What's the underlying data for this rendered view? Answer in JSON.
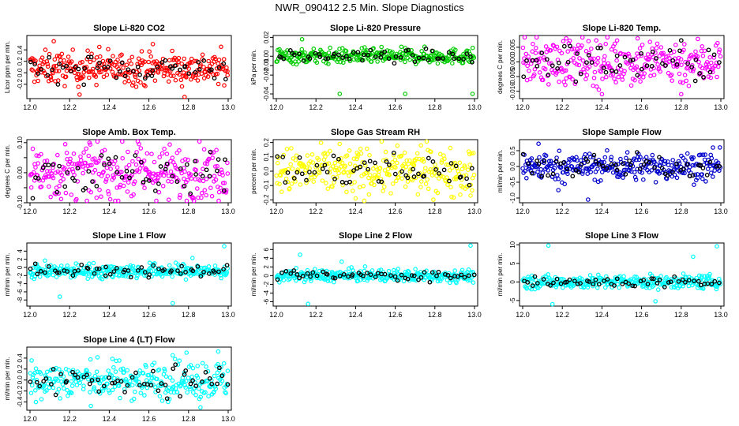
{
  "figure_title": "NWR_090412  2.5 Min. Slope Diagnostics",
  "chart_data": [
    {
      "type": "scatter",
      "title": "Slope Li-820 CO2",
      "ylabel": "Licor ppm per min.",
      "xlim": [
        12.0,
        13.0
      ],
      "ylim": [
        -0.45,
        0.65
      ],
      "yticks": [
        -0.2,
        0.0,
        0.2,
        0.4
      ],
      "yticklabels": [
        "-0.2",
        "0.0",
        "0.2",
        "0.4"
      ],
      "xticks": [
        12.0,
        12.2,
        12.4,
        12.6,
        12.8,
        13.0
      ],
      "xticklabels": [
        "12.0",
        "12.2",
        "12.4",
        "12.6",
        "12.8",
        "13.0"
      ],
      "color": "#ff0000",
      "center": 0.08,
      "spread": 0.14,
      "outliers": [
        [
          12.12,
          0.55
        ],
        [
          12.25,
          -0.38
        ],
        [
          12.35,
          0.45
        ],
        [
          12.62,
          0.5
        ],
        [
          12.78,
          -0.42
        ]
      ]
    },
    {
      "type": "scatter",
      "title": "Slope Li-820 Pressure",
      "ylabel": "kPa per min.",
      "xlim": [
        12.0,
        13.0
      ],
      "ylim": [
        -0.045,
        0.022
      ],
      "yticks": [
        -0.04,
        -0.03,
        -0.02,
        -0.01,
        0.0,
        0.01,
        0.02
      ],
      "yticklabels": [
        "-0.04",
        "",
        "-0.02",
        "-0.01",
        "0.00",
        "",
        "0.02"
      ],
      "xticks": [
        12.0,
        12.2,
        12.4,
        12.6,
        12.8,
        13.0
      ],
      "xticklabels": [
        "12.0",
        "12.2",
        "12.4",
        "12.6",
        "12.8",
        "13.0"
      ],
      "color": "#00cc00",
      "center": 0.0,
      "spread": 0.004,
      "outliers": [
        [
          12.32,
          -0.04
        ],
        [
          12.65,
          -0.04
        ],
        [
          12.99,
          -0.04
        ],
        [
          12.13,
          0.018
        ]
      ]
    },
    {
      "type": "scatter",
      "title": "Slope Li-820 Temp.",
      "ylabel": "degrees C per min.",
      "xlim": [
        12.0,
        13.0
      ],
      "ylim": [
        -0.0125,
        0.009
      ],
      "yticks": [
        -0.01,
        -0.005,
        0.0,
        0.005
      ],
      "yticklabels": [
        "-0.010",
        "-0.005",
        "0.000",
        "0.005"
      ],
      "xticks": [
        12.0,
        12.2,
        12.4,
        12.6,
        12.8,
        13.0
      ],
      "xticklabels": [
        "12.0",
        "12.2",
        "12.4",
        "12.6",
        "12.8",
        "13.0"
      ],
      "color": "#ff00ff",
      "center": 0.0,
      "spread": 0.004,
      "outliers": [
        [
          12.22,
          0.008
        ],
        [
          12.4,
          -0.011
        ],
        [
          12.58,
          0.008
        ],
        [
          12.8,
          -0.011
        ]
      ]
    },
    {
      "type": "scatter",
      "title": "Slope Amb. Box Temp.",
      "ylabel": "degrees C per min.",
      "xlim": [
        12.0,
        13.0
      ],
      "ylim": [
        -0.1,
        0.11
      ],
      "yticks": [
        -0.1,
        -0.05,
        0.0,
        0.05,
        0.1
      ],
      "yticklabels": [
        "-0.10",
        "",
        "0.00",
        "",
        "0.10"
      ],
      "xticks": [
        12.0,
        12.2,
        12.4,
        12.6,
        12.8,
        13.0
      ],
      "xticklabels": [
        "12.0",
        "12.2",
        "12.4",
        "12.6",
        "12.8",
        "13.0"
      ],
      "color": "#ff00ff",
      "center": 0.0,
      "spread": 0.045,
      "outliers": [
        [
          12.3,
          0.1
        ],
        [
          12.55,
          0.095
        ],
        [
          12.7,
          -0.09
        ]
      ]
    },
    {
      "type": "scatter",
      "title": "Slope Gas Stream RH",
      "ylabel": "percent per min.",
      "xlim": [
        12.0,
        13.0
      ],
      "ylim": [
        -0.22,
        0.22
      ],
      "yticks": [
        -0.2,
        -0.1,
        0.0,
        0.1,
        0.2
      ],
      "yticklabels": [
        "-0.2",
        "-0.1",
        "0.0",
        "0.1",
        "0.2"
      ],
      "xticks": [
        12.0,
        12.2,
        12.4,
        12.6,
        12.8,
        13.0
      ],
      "xticklabels": [
        "12.0",
        "12.2",
        "12.4",
        "12.6",
        "12.8",
        "13.0"
      ],
      "color": "#ffff00",
      "center": 0.0,
      "spread": 0.08,
      "outliers": [
        [
          12.32,
          0.19
        ],
        [
          12.4,
          -0.19
        ],
        [
          12.73,
          0.18
        ],
        [
          12.98,
          -0.17
        ]
      ]
    },
    {
      "type": "scatter",
      "title": "Slope Sample Flow",
      "ylabel": "ml/min per min.",
      "xlim": [
        12.0,
        13.0
      ],
      "ylim": [
        -1.15,
        0.85
      ],
      "yticks": [
        -1.0,
        -0.5,
        0.0,
        0.5
      ],
      "yticklabels": [
        "-1.0",
        "-0.5",
        "0.0",
        "0.5"
      ],
      "xticks": [
        12.0,
        12.2,
        12.4,
        12.6,
        12.8,
        13.0
      ],
      "xticklabels": [
        "12.0",
        "12.2",
        "12.4",
        "12.6",
        "12.8",
        "13.0"
      ],
      "color": "#0000cc",
      "center": 0.0,
      "spread": 0.22,
      "outliers": [
        [
          12.08,
          0.72
        ],
        [
          12.33,
          -1.05
        ],
        [
          12.18,
          -0.75
        ],
        [
          12.96,
          0.6
        ]
      ]
    },
    {
      "type": "scatter",
      "title": "Slope Line 1 Flow",
      "ylabel": "ml/min per min.",
      "xlim": [
        12.0,
        13.0
      ],
      "ylim": [
        -9.5,
        6.0
      ],
      "yticks": [
        -8,
        -6,
        -4,
        -2,
        0,
        2,
        4
      ],
      "yticklabels": [
        "-8",
        "-6",
        "-4",
        "-2",
        "0",
        "2",
        "4"
      ],
      "xticks": [
        12.0,
        12.2,
        12.4,
        12.6,
        12.8,
        13.0
      ],
      "xticklabels": [
        "12.0",
        "12.2",
        "12.4",
        "12.6",
        "12.8",
        "13.0"
      ],
      "color": "#00ffff",
      "center": -0.9,
      "spread": 0.9,
      "outliers": [
        [
          12.15,
          -7.2
        ],
        [
          12.72,
          -8.8
        ],
        [
          12.98,
          5.2
        ],
        [
          12.82,
          2.3
        ]
      ]
    },
    {
      "type": "scatter",
      "title": "Slope Line 2 Flow",
      "ylabel": "ml/min per min.",
      "xlim": [
        12.0,
        13.0
      ],
      "ylim": [
        -7.0,
        7.5
      ],
      "yticks": [
        -6,
        -4,
        -2,
        0,
        2,
        4,
        6
      ],
      "yticklabels": [
        "-6",
        "-4",
        "-2",
        "0",
        "2",
        "4",
        "6"
      ],
      "xticks": [
        12.0,
        12.2,
        12.4,
        12.6,
        12.8,
        13.0
      ],
      "xticklabels": [
        "12.0",
        "12.2",
        "12.4",
        "12.6",
        "12.8",
        "13.0"
      ],
      "color": "#00ffff",
      "center": 0.0,
      "spread": 0.7,
      "outliers": [
        [
          12.16,
          -6.5
        ],
        [
          12.12,
          4.8
        ],
        [
          12.98,
          6.9
        ],
        [
          12.33,
          3.2
        ]
      ]
    },
    {
      "type": "scatter",
      "title": "Slope Line 3 Flow",
      "ylabel": "ml/min per min.",
      "xlim": [
        12.0,
        13.0
      ],
      "ylim": [
        -6.5,
        10.5
      ],
      "yticks": [
        -5,
        0,
        5,
        10
      ],
      "yticklabels": [
        "-5",
        "0",
        "5",
        "10"
      ],
      "xticks": [
        12.0,
        12.2,
        12.4,
        12.6,
        12.8,
        13.0
      ],
      "xticklabels": [
        "12.0",
        "12.2",
        "12.4",
        "12.6",
        "12.8",
        "13.0"
      ],
      "color": "#00ffff",
      "center": 0.0,
      "spread": 0.9,
      "outliers": [
        [
          12.13,
          9.8
        ],
        [
          12.15,
          -6.0
        ],
        [
          12.98,
          9.6
        ],
        [
          12.67,
          -5.2
        ],
        [
          12.86,
          6.8
        ]
      ]
    },
    {
      "type": "scatter",
      "title": "Slope Line 4 (LT) Flow",
      "ylabel": "ml/min per min.",
      "xlim": [
        12.0,
        13.0
      ],
      "ylim": [
        -0.55,
        0.6
      ],
      "yticks": [
        -0.4,
        -0.2,
        0.0,
        0.2,
        0.4
      ],
      "yticklabels": [
        "-0.4",
        "-0.2",
        "0.0",
        "0.2",
        "0.4"
      ],
      "xticks": [
        12.0,
        12.2,
        12.4,
        12.6,
        12.8,
        13.0
      ],
      "xticklabels": [
        "12.0",
        "12.2",
        "12.4",
        "12.6",
        "12.8",
        "13.0"
      ],
      "color": "#00ffff",
      "center": 0.0,
      "spread": 0.17,
      "outliers": [
        [
          12.72,
          0.45
        ],
        [
          12.86,
          -0.5
        ],
        [
          12.95,
          0.52
        ],
        [
          12.03,
          -0.4
        ]
      ]
    }
  ]
}
